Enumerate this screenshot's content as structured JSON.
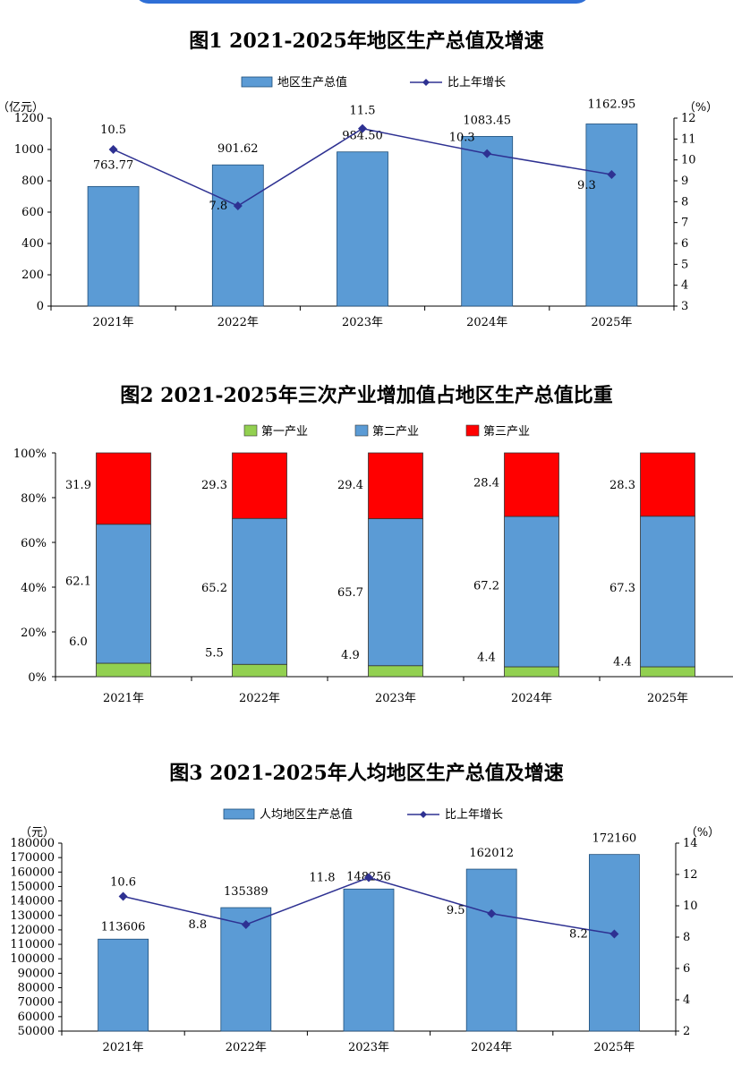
{
  "page": {
    "accent_color": "#2f6fd6"
  },
  "chart_data": [
    {
      "type": "bar",
      "title": "图1   2021-2025年地区生产总值及增速",
      "categories": [
        "2021年",
        "2022年",
        "2023年",
        "2024年",
        "2025年"
      ],
      "y_left_unit": "（亿元）",
      "y_right_unit": "（%）",
      "ylim_left": [
        0,
        1200
      ],
      "yticks_left": [
        "0",
        "200",
        "400",
        "600",
        "800",
        "1000",
        "1200"
      ],
      "ylim_right": [
        3,
        12
      ],
      "yticks_right": [
        "3",
        "4",
        "5",
        "6",
        "7",
        "8",
        "9",
        "10",
        "11",
        "12"
      ],
      "legend_position": "top-center",
      "bar_series": {
        "name": "地区生产总值",
        "color": "#5b9bd5",
        "values": [
          763.77,
          901.62,
          984.5,
          1083.45,
          1162.95
        ],
        "labels": [
          "763.77",
          "901.62",
          "984.50",
          "1083.45",
          "1162.95"
        ]
      },
      "line_series": {
        "name": "比上年增长",
        "color": "#2e3192",
        "values": [
          10.5,
          7.8,
          11.5,
          10.3,
          9.3
        ],
        "labels": [
          "10.5",
          "7.8",
          "11.5",
          "10.3",
          "9.3"
        ]
      }
    },
    {
      "type": "bar",
      "stacked": true,
      "title": "图2   2021-2025年三次产业增加值占地区生产总值比重",
      "categories": [
        "2021年",
        "2022年",
        "2023年",
        "2024年",
        "2025年"
      ],
      "ylim": [
        0,
        100
      ],
      "yticks": [
        "0%",
        "20%",
        "40%",
        "60%",
        "80%",
        "100%"
      ],
      "legend_position": "top-center",
      "series": [
        {
          "name": "第一产业",
          "color": "#92d050",
          "values": [
            6.0,
            5.5,
            4.9,
            4.4,
            4.4
          ],
          "labels": [
            "6.0",
            "5.5",
            "4.9",
            "4.4",
            "4.4"
          ]
        },
        {
          "name": "第二产业",
          "color": "#5b9bd5",
          "values": [
            62.1,
            65.2,
            65.7,
            67.2,
            67.3
          ],
          "labels": [
            "62.1",
            "65.2",
            "65.7",
            "67.2",
            "67.3"
          ]
        },
        {
          "name": "第三产业",
          "color": "#ff0000",
          "values": [
            31.9,
            29.3,
            29.4,
            28.4,
            28.3
          ],
          "labels": [
            "31.9",
            "29.3",
            "29.4",
            "28.4",
            "28.3"
          ]
        }
      ]
    },
    {
      "type": "bar",
      "title": "图3   2021-2025年人均地区生产总值及增速",
      "categories": [
        "2021年",
        "2022年",
        "2023年",
        "2024年",
        "2025年"
      ],
      "y_left_unit": "（元）",
      "y_right_unit": "（%）",
      "ylim_left": [
        50000,
        180000
      ],
      "yticks_left": [
        "50000",
        "60000",
        "70000",
        "80000",
        "90000",
        "100000",
        "110000",
        "120000",
        "130000",
        "140000",
        "150000",
        "160000",
        "170000",
        "180000"
      ],
      "ylim_right": [
        2,
        14
      ],
      "yticks_right": [
        "2",
        "4",
        "6",
        "8",
        "10",
        "12",
        "14"
      ],
      "legend_position": "top-center",
      "bar_series": {
        "name": "人均地区生产总值",
        "color": "#5b9bd5",
        "values": [
          113606,
          135389,
          148256,
          162012,
          172160
        ],
        "labels": [
          "113606",
          "135389",
          "148256",
          "162012",
          "172160"
        ]
      },
      "line_series": {
        "name": "比上年增长",
        "color": "#2e3192",
        "values": [
          10.6,
          8.8,
          11.8,
          9.5,
          8.2
        ],
        "labels": [
          "10.6",
          "8.8",
          "11.8",
          "9.5",
          "8.2"
        ]
      }
    }
  ]
}
